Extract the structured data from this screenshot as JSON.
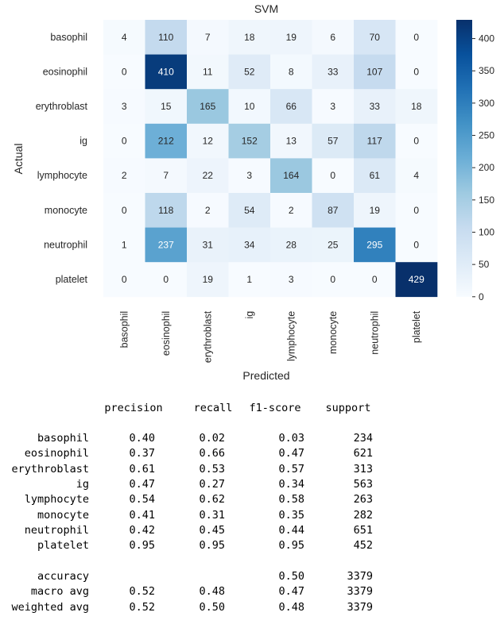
{
  "chart_data": {
    "type": "heatmap",
    "title": "SVM",
    "xlabel": "Predicted",
    "ylabel": "Actual",
    "x_categories": [
      "basophil",
      "eosinophil",
      "erythroblast",
      "ig",
      "lymphocyte",
      "monocyte",
      "neutrophil",
      "platelet"
    ],
    "y_categories": [
      "basophil",
      "eosinophil",
      "erythroblast",
      "ig",
      "lymphocyte",
      "monocyte",
      "neutrophil",
      "platelet"
    ],
    "matrix": [
      [
        4,
        110,
        7,
        18,
        19,
        6,
        70,
        0
      ],
      [
        0,
        410,
        11,
        52,
        8,
        33,
        107,
        0
      ],
      [
        3,
        15,
        165,
        10,
        66,
        3,
        33,
        18
      ],
      [
        0,
        212,
        12,
        152,
        13,
        57,
        117,
        0
      ],
      [
        2,
        7,
        22,
        3,
        164,
        0,
        61,
        4
      ],
      [
        0,
        118,
        2,
        54,
        2,
        87,
        19,
        0
      ],
      [
        1,
        237,
        31,
        34,
        28,
        25,
        295,
        0
      ],
      [
        0,
        0,
        19,
        1,
        3,
        0,
        0,
        429
      ]
    ],
    "colorbar": {
      "min": 0,
      "max": 429,
      "ticks": [
        0,
        50,
        100,
        150,
        200,
        250,
        300,
        350,
        400
      ]
    },
    "colormap": "Blues",
    "annotation_dark_color": "#262626",
    "annotation_light_color": "#ffffff"
  },
  "report": {
    "headers": [
      "precision",
      "recall",
      "f1-score",
      "support"
    ],
    "rows": [
      {
        "label": "basophil",
        "precision": "0.40",
        "recall": "0.02",
        "f1": "0.03",
        "support": "234"
      },
      {
        "label": "eosinophil",
        "precision": "0.37",
        "recall": "0.66",
        "f1": "0.47",
        "support": "621"
      },
      {
        "label": "erythroblast",
        "precision": "0.61",
        "recall": "0.53",
        "f1": "0.57",
        "support": "313"
      },
      {
        "label": "ig",
        "precision": "0.47",
        "recall": "0.27",
        "f1": "0.34",
        "support": "563"
      },
      {
        "label": "lymphocyte",
        "precision": "0.54",
        "recall": "0.62",
        "f1": "0.58",
        "support": "263"
      },
      {
        "label": "monocyte",
        "precision": "0.41",
        "recall": "0.31",
        "f1": "0.35",
        "support": "282"
      },
      {
        "label": "neutrophil",
        "precision": "0.42",
        "recall": "0.45",
        "f1": "0.44",
        "support": "651"
      },
      {
        "label": "platelet",
        "precision": "0.95",
        "recall": "0.95",
        "f1": "0.95",
        "support": "452"
      }
    ],
    "summary": [
      {
        "label": "accuracy",
        "precision": "",
        "recall": "",
        "f1": "0.50",
        "support": "3379"
      },
      {
        "label": "macro avg",
        "precision": "0.52",
        "recall": "0.48",
        "f1": "0.47",
        "support": "3379"
      },
      {
        "label": "weighted avg",
        "precision": "0.52",
        "recall": "0.50",
        "f1": "0.48",
        "support": "3379"
      }
    ]
  }
}
